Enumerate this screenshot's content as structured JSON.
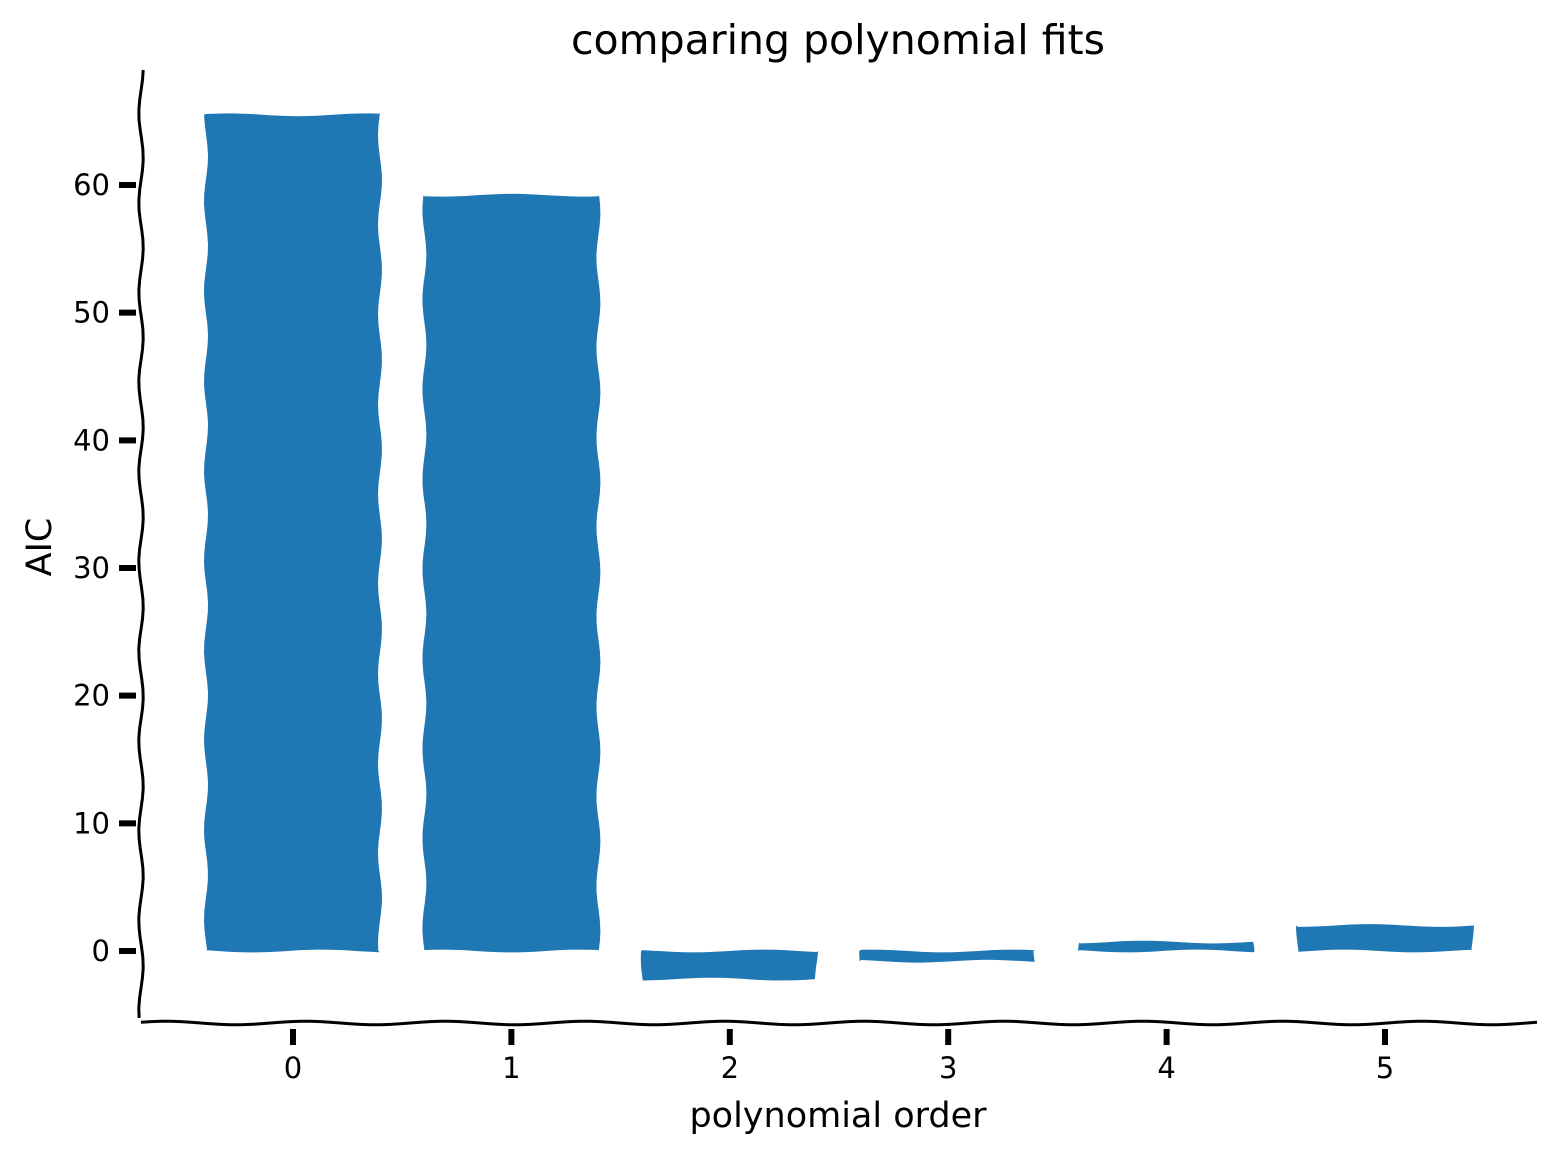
{
  "chart_data": {
    "type": "bar",
    "title": "comparing polynomial fits",
    "xlabel": "polynomial order",
    "ylabel": "AIC",
    "categories": [
      "0",
      "1",
      "2",
      "3",
      "4",
      "5"
    ],
    "values": [
      65.5,
      59.2,
      -2.2,
      -0.8,
      0.7,
      2.0
    ],
    "ylim": [
      -5.3,
      69
    ],
    "yticks": [
      "0",
      "10",
      "20",
      "30",
      "40",
      "50",
      "60"
    ],
    "grid": false,
    "style": "xkcd",
    "bar_color": "#1f77b4",
    "axis_color": "#000000"
  }
}
